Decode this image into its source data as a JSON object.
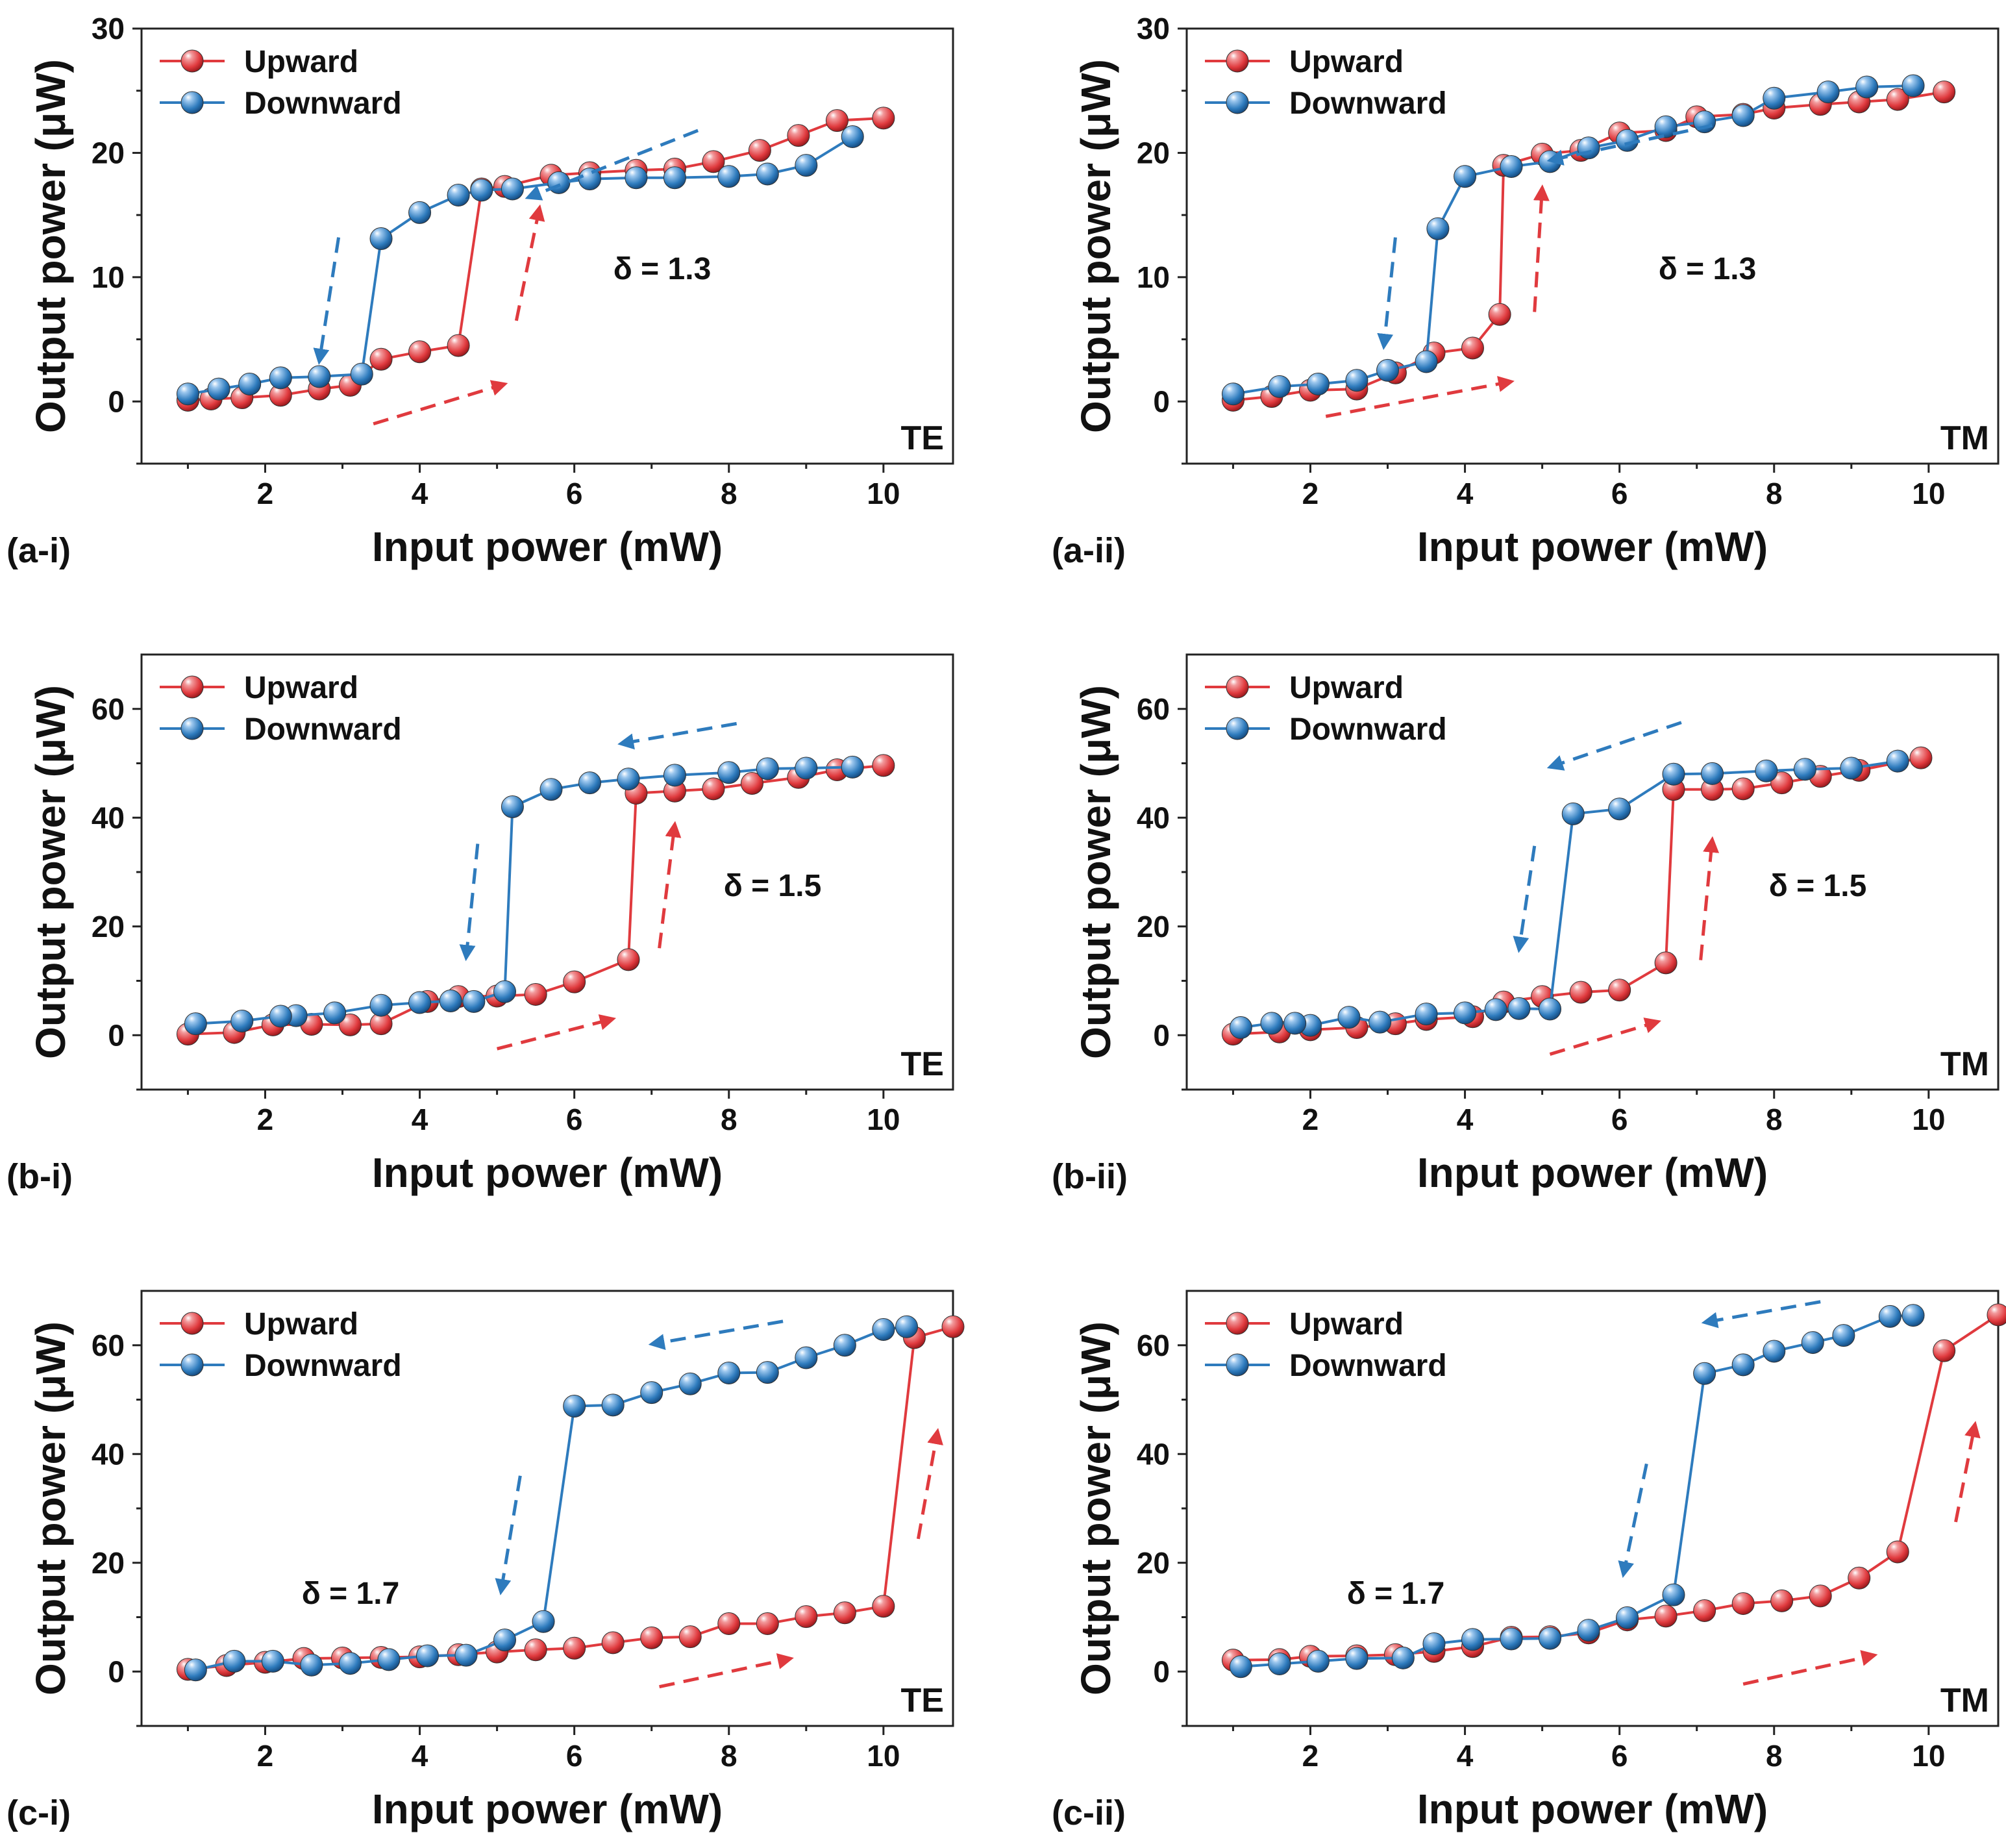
{
  "colors": {
    "upward": "#e03a3e",
    "downward": "#2e7bbd",
    "axis": "#222222"
  },
  "chart_data": [
    {
      "type": "line",
      "panel": "(a-i)",
      "polarization": "TE",
      "delta_label": "δ = 1.3",
      "xlabel": "Input power (mW)",
      "ylabel": "Output power (μW)",
      "xlim": [
        0.4,
        10.9
      ],
      "ylim": [
        -5,
        30
      ],
      "xticks": [
        2,
        4,
        6,
        8,
        10
      ],
      "yticks": [
        0,
        10,
        20,
        30
      ],
      "legend": [
        "Upward",
        "Downward"
      ],
      "series": [
        {
          "name": "Upward",
          "x": [
            1.0,
            1.3,
            1.7,
            2.2,
            2.7,
            3.1,
            3.5,
            4.0,
            4.5,
            4.8,
            5.1,
            5.7,
            6.2,
            6.8,
            7.3,
            7.8,
            8.4,
            8.9,
            9.4,
            10.0
          ],
          "y": [
            0.1,
            0.2,
            0.3,
            0.5,
            1.0,
            1.3,
            3.4,
            4.0,
            4.5,
            17.1,
            17.3,
            18.2,
            18.4,
            18.6,
            18.7,
            19.3,
            20.2,
            21.4,
            22.6,
            22.8
          ]
        },
        {
          "name": "Downward",
          "x": [
            9.6,
            9.0,
            8.5,
            8.0,
            7.3,
            6.8,
            6.2,
            5.8,
            5.2,
            4.8,
            4.5,
            4.0,
            3.5,
            3.25,
            2.7,
            2.2,
            1.8,
            1.4,
            1.0
          ],
          "y": [
            21.3,
            19.0,
            18.3,
            18.1,
            18.0,
            18.0,
            17.9,
            17.6,
            17.1,
            17.0,
            16.6,
            15.2,
            13.1,
            2.2,
            2.0,
            1.9,
            1.4,
            1.0,
            0.6
          ]
        }
      ],
      "annotations": [
        {
          "series": "Downward",
          "x": [
            7.6,
            5.4
          ],
          "y": [
            21.8,
            16.4
          ]
        },
        {
          "series": "Downward",
          "x": [
            2.95,
            2.7
          ],
          "y": [
            13.2,
            3.2
          ]
        },
        {
          "series": "Upward",
          "x": [
            3.4,
            5.1
          ],
          "y": [
            -1.8,
            1.4
          ]
        },
        {
          "series": "Upward",
          "x": [
            5.25,
            5.55
          ],
          "y": [
            6.5,
            15.6
          ]
        }
      ]
    },
    {
      "type": "line",
      "panel": "(a-ii)",
      "polarization": "TM",
      "delta_label": "δ = 1.3",
      "xlabel": "Input power (mW)",
      "ylabel": "Output power (μW)",
      "xlim": [
        0.4,
        10.9
      ],
      "ylim": [
        -5,
        30
      ],
      "xticks": [
        2,
        4,
        6,
        8,
        10
      ],
      "yticks": [
        0,
        10,
        20,
        30
      ],
      "legend": [
        "Upward",
        "Downward"
      ],
      "series": [
        {
          "name": "Upward",
          "x": [
            1.0,
            1.5,
            2.0,
            2.6,
            3.1,
            3.6,
            4.1,
            4.45,
            4.5,
            5.0,
            5.5,
            6.0,
            6.6,
            7.0,
            7.6,
            8.0,
            8.6,
            9.1,
            9.6,
            10.2
          ],
          "y": [
            0.1,
            0.4,
            0.9,
            1.0,
            2.3,
            3.9,
            4.3,
            7.0,
            19.0,
            19.9,
            20.2,
            21.6,
            21.8,
            22.9,
            23.1,
            23.6,
            23.9,
            24.1,
            24.3,
            24.9
          ]
        },
        {
          "name": "Downward",
          "x": [
            9.8,
            9.2,
            8.7,
            8.0,
            7.6,
            7.1,
            6.6,
            6.1,
            5.6,
            5.1,
            4.6,
            4.0,
            3.65,
            3.5,
            3.0,
            2.6,
            2.1,
            1.6,
            1.0
          ],
          "y": [
            25.4,
            25.3,
            24.9,
            24.4,
            23.0,
            22.5,
            22.1,
            21.0,
            20.4,
            19.3,
            18.9,
            18.1,
            13.9,
            3.2,
            2.5,
            1.7,
            1.4,
            1.2,
            0.6
          ]
        }
      ],
      "annotations": [
        {
          "series": "Downward",
          "x": [
            7.2,
            5.1
          ],
          "y": [
            22.2,
            19.4
          ]
        },
        {
          "series": "Downward",
          "x": [
            3.1,
            2.95
          ],
          "y": [
            13.2,
            4.4
          ]
        },
        {
          "series": "Upward",
          "x": [
            2.2,
            4.6
          ],
          "y": [
            -1.2,
            1.6
          ]
        },
        {
          "series": "Upward",
          "x": [
            4.9,
            5.0
          ],
          "y": [
            7.2,
            17.2
          ]
        }
      ]
    },
    {
      "type": "line",
      "panel": "(b-i)",
      "polarization": "TE",
      "delta_label": "δ = 1.5",
      "xlabel": "Input power (mW)",
      "ylabel": "Output power (μW)",
      "xlim": [
        0.4,
        10.9
      ],
      "ylim": [
        -10,
        70
      ],
      "xticks": [
        2,
        4,
        6,
        8,
        10
      ],
      "yticks": [
        0,
        20,
        40,
        60
      ],
      "legend": [
        "Upward",
        "Downward"
      ],
      "series": [
        {
          "name": "Upward",
          "x": [
            1.0,
            1.6,
            2.1,
            2.6,
            3.1,
            3.5,
            4.1,
            4.5,
            5.0,
            5.5,
            6.0,
            6.7,
            6.8,
            7.3,
            7.8,
            8.3,
            8.9,
            9.4,
            10.0
          ],
          "y": [
            0.2,
            0.5,
            1.9,
            2.0,
            1.9,
            2.1,
            6.2,
            7.1,
            7.2,
            7.5,
            9.8,
            13.9,
            44.5,
            44.9,
            45.3,
            46.3,
            47.4,
            48.8,
            49.6
          ]
        },
        {
          "name": "Downward",
          "x": [
            9.6,
            9.0,
            8.5,
            8.0,
            7.3,
            6.7,
            6.2,
            5.7,
            5.2,
            5.1,
            4.7,
            4.4,
            4.0,
            3.5,
            2.9,
            2.4,
            2.2,
            1.7,
            1.1
          ],
          "y": [
            49.3,
            49.1,
            49.0,
            48.3,
            47.8,
            47.1,
            46.4,
            45.2,
            42.0,
            8.0,
            6.2,
            6.3,
            6.0,
            5.5,
            4.1,
            3.6,
            3.5,
            2.6,
            2.1
          ]
        }
      ],
      "annotations": [
        {
          "series": "Downward",
          "x": [
            8.1,
            6.6
          ],
          "y": [
            57.3,
            53.6
          ]
        },
        {
          "series": "Downward",
          "x": [
            4.75,
            4.6
          ],
          "y": [
            35.2,
            14.2
          ]
        },
        {
          "series": "Upward",
          "x": [
            5.0,
            6.5
          ],
          "y": [
            -2.5,
            3.0
          ]
        },
        {
          "series": "Upward",
          "x": [
            7.1,
            7.3
          ],
          "y": [
            16.0,
            38.8
          ]
        }
      ]
    },
    {
      "type": "line",
      "panel": "(b-ii)",
      "polarization": "TM",
      "delta_label": "δ = 1.5",
      "xlabel": "Input power (mW)",
      "ylabel": "Output power (μW)",
      "xlim": [
        0.4,
        10.9
      ],
      "ylim": [
        -10,
        70
      ],
      "xticks": [
        2,
        4,
        6,
        8,
        10
      ],
      "yticks": [
        0,
        20,
        40,
        60
      ],
      "legend": [
        "Upward",
        "Downward"
      ],
      "series": [
        {
          "name": "Upward",
          "x": [
            1.0,
            1.6,
            2.0,
            2.6,
            3.1,
            3.5,
            4.1,
            4.5,
            5.0,
            5.5,
            6.0,
            6.6,
            6.7,
            7.2,
            7.6,
            8.1,
            8.6,
            9.1,
            9.9
          ],
          "y": [
            0.2,
            0.6,
            1.0,
            1.4,
            2.1,
            2.9,
            3.4,
            6.1,
            7.1,
            7.9,
            8.3,
            13.3,
            45.2,
            45.2,
            45.3,
            46.4,
            47.6,
            48.7,
            51.0
          ]
        },
        {
          "name": "Downward",
          "x": [
            9.6,
            9.0,
            8.4,
            7.9,
            7.2,
            6.7,
            6.0,
            5.4,
            5.1,
            4.7,
            4.4,
            4.0,
            3.5,
            2.9,
            2.5,
            2.0,
            1.8,
            1.5,
            1.1
          ],
          "y": [
            50.4,
            49.1,
            48.9,
            48.6,
            48.1,
            48.0,
            41.6,
            40.7,
            4.8,
            4.9,
            4.7,
            4.1,
            3.9,
            2.4,
            3.3,
            1.8,
            2.2,
            2.2,
            1.4
          ]
        }
      ],
      "annotations": [
        {
          "series": "Downward",
          "x": [
            6.8,
            5.1
          ],
          "y": [
            57.5,
            49.3
          ]
        },
        {
          "series": "Downward",
          "x": [
            4.9,
            4.7
          ],
          "y": [
            34.8,
            15.7
          ]
        },
        {
          "series": "Upward",
          "x": [
            5.1,
            6.5
          ],
          "y": [
            -3.5,
            2.5
          ]
        },
        {
          "series": "Upward",
          "x": [
            7.05,
            7.2
          ],
          "y": [
            13.8,
            36.0
          ]
        }
      ]
    },
    {
      "type": "line",
      "panel": "(c-i)",
      "polarization": "TE",
      "delta_label": "δ = 1.7",
      "xlabel": "Input power (mW)",
      "ylabel": "Output power (μW)",
      "xlim": [
        0.4,
        10.9
      ],
      "ylim": [
        -10,
        70
      ],
      "xticks": [
        2,
        4,
        6,
        8,
        10
      ],
      "yticks": [
        0,
        20,
        40,
        60
      ],
      "legend": [
        "Upward",
        "Downward"
      ],
      "series": [
        {
          "name": "Upward",
          "x": [
            1.0,
            1.5,
            2.0,
            2.5,
            3.0,
            3.5,
            4.0,
            4.5,
            5.0,
            5.5,
            6.0,
            6.5,
            7.0,
            7.5,
            8.0,
            8.5,
            9.0,
            9.5,
            10.0,
            10.4,
            10.9
          ],
          "y": [
            0.4,
            1.1,
            1.7,
            2.4,
            2.5,
            2.6,
            2.7,
            3.1,
            3.6,
            4.0,
            4.3,
            5.3,
            6.2,
            6.4,
            8.8,
            8.8,
            10.1,
            10.8,
            12.0,
            61.4,
            63.4
          ]
        },
        {
          "name": "Downward",
          "x": [
            10.3,
            10.0,
            9.5,
            9.0,
            8.5,
            8.0,
            7.5,
            7.0,
            6.5,
            6.0,
            5.6,
            5.1,
            4.6,
            4.1,
            3.6,
            3.1,
            2.6,
            2.1,
            1.6,
            1.1
          ],
          "y": [
            63.4,
            62.9,
            60.0,
            57.7,
            55.0,
            54.9,
            52.9,
            51.3,
            49.0,
            48.8,
            9.2,
            5.8,
            3.0,
            2.9,
            2.2,
            1.5,
            1.2,
            1.9,
            1.9,
            0.3
          ]
        }
      ],
      "annotations": [
        {
          "series": "Downward",
          "x": [
            8.7,
            7.0
          ],
          "y": [
            64.4,
            60.2
          ]
        },
        {
          "series": "Downward",
          "x": [
            5.3,
            5.05
          ],
          "y": [
            36.0,
            14.6
          ]
        },
        {
          "series": "Upward",
          "x": [
            7.1,
            8.8
          ],
          "y": [
            -2.8,
            2.4
          ]
        },
        {
          "series": "Upward",
          "x": [
            10.45,
            10.7
          ],
          "y": [
            24.4,
            44.2
          ]
        }
      ]
    },
    {
      "type": "line",
      "panel": "(c-ii)",
      "polarization": "TM",
      "delta_label": "δ = 1.7",
      "xlabel": "Input power (mW)",
      "ylabel": "Output power (μW)",
      "xlim": [
        0.4,
        10.9
      ],
      "ylim": [
        -10,
        70
      ],
      "xticks": [
        2,
        4,
        6,
        8,
        10
      ],
      "yticks": [
        0,
        20,
        40,
        60
      ],
      "legend": [
        "Upward",
        "Downward"
      ],
      "series": [
        {
          "name": "Upward",
          "x": [
            1.0,
            1.6,
            2.0,
            2.6,
            3.1,
            3.6,
            4.1,
            4.6,
            5.1,
            5.6,
            6.1,
            6.6,
            7.1,
            7.6,
            8.1,
            8.6,
            9.1,
            9.6,
            10.2,
            10.9
          ],
          "y": [
            2.1,
            2.2,
            2.8,
            2.9,
            3.1,
            3.7,
            4.6,
            6.3,
            6.4,
            7.1,
            9.5,
            10.2,
            11.2,
            12.5,
            13.0,
            13.9,
            17.2,
            22.0,
            59.0,
            65.6
          ]
        },
        {
          "name": "Downward",
          "x": [
            9.8,
            9.5,
            8.9,
            8.5,
            8.0,
            7.6,
            7.1,
            6.7,
            6.1,
            5.6,
            5.1,
            4.6,
            4.1,
            3.6,
            3.2,
            2.6,
            2.1,
            1.6,
            1.1
          ],
          "y": [
            65.5,
            65.3,
            61.8,
            60.5,
            58.9,
            56.4,
            54.8,
            14.1,
            9.9,
            7.6,
            6.1,
            6.0,
            5.9,
            5.1,
            2.5,
            2.4,
            1.9,
            1.4,
            0.9
          ]
        }
      ],
      "annotations": [
        {
          "series": "Downward",
          "x": [
            8.6,
            7.1
          ],
          "y": [
            68.0,
            64.2
          ]
        },
        {
          "series": "Downward",
          "x": [
            6.35,
            6.05
          ],
          "y": [
            38.2,
            17.8
          ]
        },
        {
          "series": "Upward",
          "x": [
            7.6,
            9.3
          ],
          "y": [
            -2.3,
            3.0
          ]
        },
        {
          "series": "Upward",
          "x": [
            10.35,
            10.6
          ],
          "y": [
            27.5,
            45.5
          ]
        }
      ]
    }
  ]
}
